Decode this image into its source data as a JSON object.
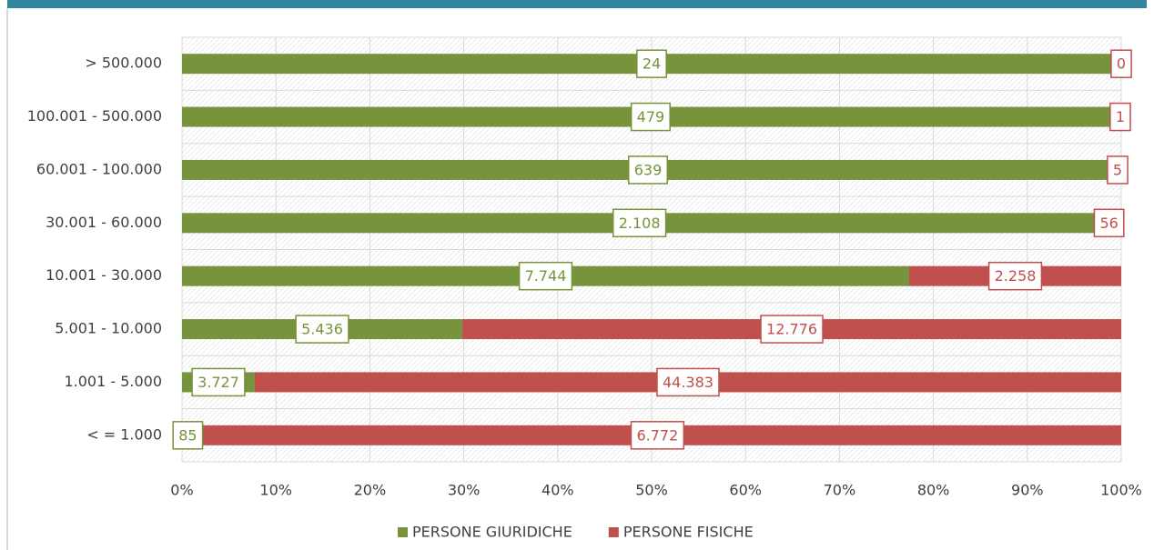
{
  "chart_data": {
    "type": "bar",
    "orientation": "horizontal",
    "stacked": "percent",
    "categories": [
      "> 500.000",
      "100.001 - 500.000",
      "60.001 - 100.000",
      "30.001 - 60.000",
      "10.001 - 30.000",
      "5.001 - 10.000",
      "1.001 - 5.000",
      "< = 1.000"
    ],
    "series": [
      {
        "name": "PERSONE GIURIDICHE",
        "color": "#77933c",
        "values": [
          24,
          479,
          639,
          2108,
          7744,
          5436,
          3727,
          85
        ],
        "value_labels": [
          "24",
          "479",
          "639",
          "2.108",
          "7.744",
          "5.436",
          "3.727",
          "85"
        ]
      },
      {
        "name": "PERSONE FISICHE",
        "color": "#c0504d",
        "values": [
          0,
          1,
          5,
          56,
          2258,
          12776,
          44383,
          6772
        ],
        "value_labels": [
          "0",
          "1",
          "5",
          "56",
          "2.258",
          "12.776",
          "44.383",
          "6.772"
        ]
      }
    ],
    "xlim": [
      0,
      100
    ],
    "xticks": [
      {
        "value": 0,
        "label": "0%"
      },
      {
        "value": 10,
        "label": "10%"
      },
      {
        "value": 20,
        "label": "20%"
      },
      {
        "value": 30,
        "label": "30%"
      },
      {
        "value": 40,
        "label": "40%"
      },
      {
        "value": 50,
        "label": "50%"
      },
      {
        "value": 60,
        "label": "60%"
      },
      {
        "value": 70,
        "label": "70%"
      },
      {
        "value": 80,
        "label": "80%"
      },
      {
        "value": 90,
        "label": "90%"
      },
      {
        "value": 100,
        "label": "100%"
      }
    ],
    "grid": true,
    "legend": "bottom"
  }
}
